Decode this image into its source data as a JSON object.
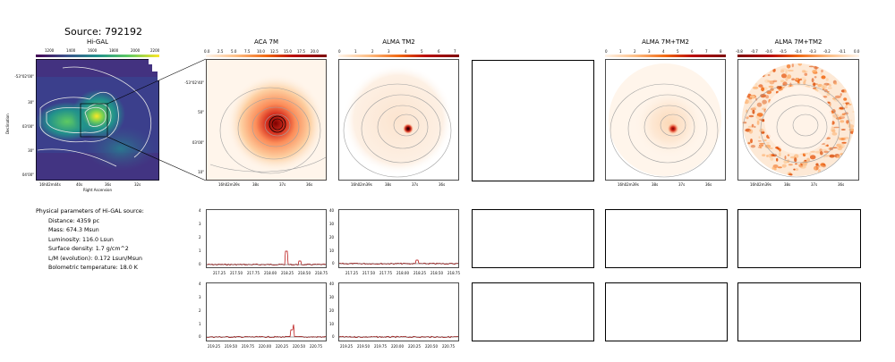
{
  "page": {
    "title": "Source: 792192"
  },
  "panels": {
    "higal": {
      "title": "Hi-GAL",
      "colorbar_ticks": [
        "1200",
        "1400",
        "1600",
        "1800",
        "2000",
        "2200"
      ],
      "y_ticks": [
        "-53°02'00\"",
        "30\"",
        "03'00\"",
        "30\"",
        "04'00\""
      ],
      "x_ticks": [
        "16h02m44s",
        "40s",
        "36s",
        "32s"
      ],
      "ylabel": "Declination",
      "xlabel": "Right Ascension"
    },
    "aca7m": {
      "title": "ACA 7M",
      "colorbar_ticks": [
        "0.0",
        "2.5",
        "5.0",
        "7.5",
        "10.0",
        "12.5",
        "15.0",
        "17.5",
        "20.0"
      ],
      "y_ticks": [
        "-53°02'40\"",
        "50\"",
        "03'00\"",
        "10\""
      ],
      "x_ticks": [
        "16h02m39s",
        "38s",
        "37s",
        "36s"
      ]
    },
    "almatm2": {
      "title": "ALMA TM2",
      "colorbar_ticks": [
        "0",
        "1",
        "2",
        "3",
        "4",
        "5",
        "6",
        "7"
      ],
      "x_ticks": [
        "16h02m39s",
        "38s",
        "37s",
        "36s"
      ]
    },
    "alma7mtm2": {
      "title": "ALMA 7M+TM2",
      "colorbar_ticks": [
        "0",
        "1",
        "2",
        "3",
        "4",
        "5",
        "6",
        "7",
        "8"
      ],
      "x_ticks": [
        "16h02m39s",
        "38s",
        "37s",
        "36s"
      ]
    },
    "alma7mtm2_neg": {
      "title": "ALMA 7M+TM2",
      "colorbar_ticks": [
        "-0.8",
        "-0.7",
        "-0.6",
        "-0.5",
        "-0.4",
        "-0.3",
        "-0.2",
        "-0.1",
        "0.0"
      ],
      "x_ticks": [
        "16h02m39s",
        "38s",
        "37s",
        "36s"
      ]
    }
  },
  "params": {
    "heading": "Physical parameters of Hi-GAL source:",
    "lines": [
      "Distance: 4359 pc",
      "Mass: 674.3 Msun",
      "Luminosity: 116.0 Lsun",
      "Surface density: 1.7 g/cm^2",
      "L/M (evolution): 0.172 Lsun/Msun",
      "Bolometric temperature: 18.0 K"
    ]
  },
  "spectra": {
    "row1": {
      "x_ticks": [
        "217.25",
        "217.50",
        "217.75",
        "218.00",
        "218.25",
        "218.50",
        "218.75"
      ],
      "y_ticks_left": [
        "0",
        "1",
        "2",
        "3",
        "4"
      ],
      "y_ticks_right": [
        "0",
        "10",
        "20",
        "30",
        "40"
      ]
    },
    "row2": {
      "x_ticks": [
        "219.25",
        "219.50",
        "219.75",
        "220.00",
        "220.25",
        "220.50",
        "220.75"
      ],
      "y_ticks_left": [
        "0",
        "1",
        "2",
        "3",
        "4"
      ],
      "y_ticks_right": [
        "0",
        "10",
        "20",
        "30",
        "40"
      ]
    }
  },
  "colors": {
    "viridis_low": "#440154",
    "viridis_high": "#fde725",
    "afmhot_low": "#fff5eb",
    "afmhot_high": "#7f0000",
    "contour_gray": "#a0a0a0",
    "spectrum_red": "#b30000"
  }
}
